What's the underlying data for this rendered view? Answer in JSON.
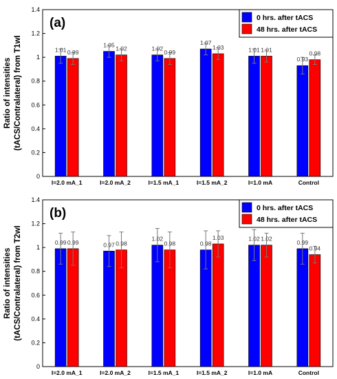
{
  "chart_data": [
    {
      "type": "bar",
      "panel_label": "(a)",
      "ylabel_line1": "Ratio of intensities",
      "ylabel_line2": "(tACS/Contralateral) from T1wI",
      "ylim": [
        0,
        1.4
      ],
      "yticks": [
        "0",
        "0.2",
        "0.4",
        "0.6",
        "0.8",
        "1",
        "1.2",
        "1.4"
      ],
      "categories": [
        "I=2.0 mA_1",
        "I=2.0 mA_2",
        "I=1.5 mA_1",
        "I=1.5 mA_2",
        "I=1.0 mA",
        "Control"
      ],
      "series": [
        {
          "name": "0 hrs. after tACS",
          "color": "#0000ff",
          "values": [
            1.01,
            1.05,
            1.02,
            1.07,
            1.01,
            0.93
          ],
          "errors": [
            0.06,
            0.05,
            0.05,
            0.05,
            0.06,
            0.07
          ],
          "labels": [
            "1.01",
            "1.05",
            "1.02",
            "1.07",
            "1.01",
            "0.93"
          ]
        },
        {
          "name": "48 hrs. after tACS",
          "color": "#ff0000",
          "values": [
            0.99,
            1.02,
            0.99,
            1.03,
            1.01,
            0.98
          ],
          "errors": [
            0.05,
            0.05,
            0.05,
            0.05,
            0.05,
            0.04
          ],
          "labels": [
            "0.99",
            "1.02",
            "0.99",
            "1.03",
            "1.01",
            "0.98"
          ]
        }
      ],
      "legend_position": "top-right",
      "grid": false
    },
    {
      "type": "bar",
      "panel_label": "(b)",
      "ylabel_line1": "Ratio of intensities",
      "ylabel_line2": "(tACS/Contralateral) from T2wI",
      "ylim": [
        0,
        1.4
      ],
      "yticks": [
        "0",
        "0.2",
        "0.4",
        "0.6",
        "0.8",
        "1",
        "1.2",
        "1.4"
      ],
      "categories": [
        "I=2.0 mA_1",
        "I=2.0 mA_2",
        "I=1.5 mA_1",
        "I=1.5 mA_2",
        "I=1.0 mA",
        "Control"
      ],
      "series": [
        {
          "name": "0 hrs. after tACS",
          "color": "#0000ff",
          "values": [
            0.99,
            0.97,
            1.02,
            0.98,
            1.02,
            0.99
          ],
          "errors": [
            0.13,
            0.13,
            0.14,
            0.16,
            0.13,
            0.13
          ],
          "labels": [
            "0.99",
            "0.97",
            "1.02",
            "0.98",
            "1.02",
            "0.99"
          ]
        },
        {
          "name": "48 hrs. after tACS",
          "color": "#ff0000",
          "values": [
            0.99,
            0.98,
            0.98,
            1.03,
            1.02,
            0.94
          ],
          "errors": [
            0.14,
            0.15,
            0.15,
            0.11,
            0.1,
            0.07
          ],
          "labels": [
            "0.99",
            "0.98",
            "0.98",
            "1.03",
            "1.02",
            "0.94"
          ]
        }
      ],
      "legend_position": "top-right",
      "grid": false
    }
  ]
}
